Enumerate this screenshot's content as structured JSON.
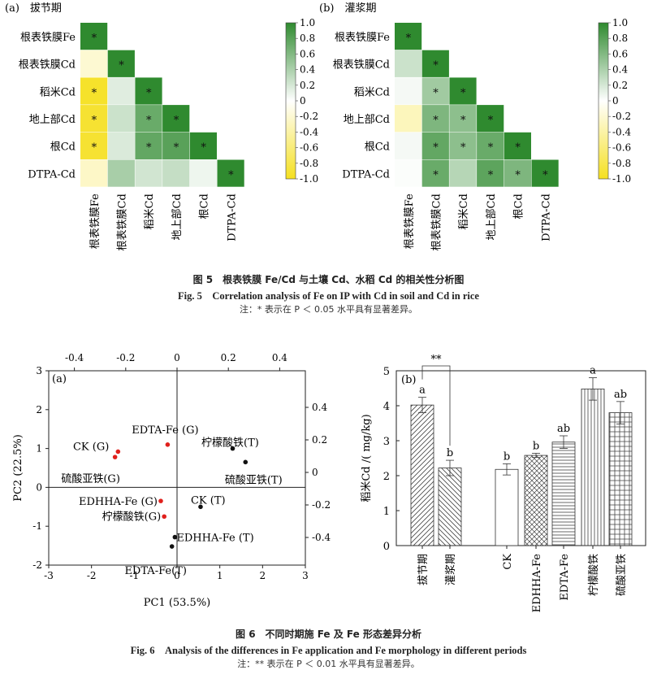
{
  "fig5": {
    "caption_cn": "图 5　根表铁膜 Fe/Cd 与土壤 Cd、水稻 Cd 的相关性分析图",
    "caption_en": "Fig. 5　Correlation analysis of Fe on IP with Cd in soil and Cd in rice",
    "note": "注：* 表示在 P ＜ 0.05 水平具有显著差异。",
    "panel_a_label": "(a)　拔节期",
    "panel_b_label": "(b)　灌浆期"
  },
  "fig6": {
    "caption_cn": "图 6　不同时期施 Fe 及 Fe 形态差异分析",
    "caption_en": "Fig. 6　Analysis of the differences in Fe application and Fe morphology in different periods",
    "note": "注：** 表示在 P ＜ 0.01 水平具有显著差异。",
    "pca_panel_label": "(a)",
    "bar_panel_label": "(b)"
  },
  "colors": {
    "negative": "#f5e020",
    "zero": "#ffffff",
    "positive": "#2f8a2f",
    "pca_g": "#e0201c",
    "pca_t": "#111111"
  },
  "chart_data": [
    {
      "type": "heatmap",
      "id": "fig5a",
      "panel": "(a)　拔节期",
      "row_labels": [
        "根表铁膜Fe",
        "根表铁膜Cd",
        "稻米Cd",
        "地上部Cd",
        "根Cd",
        "DTPA-Cd"
      ],
      "col_labels": [
        "根表铁膜Fe",
        "根表铁膜Cd",
        "稻米Cd",
        "地上部Cd",
        "根Cd",
        "DTPA-Cd"
      ],
      "values": [
        [
          1.0
        ],
        [
          -0.2,
          1.0
        ],
        [
          -0.95,
          0.15,
          1.0
        ],
        [
          -0.92,
          0.25,
          0.72,
          1.0
        ],
        [
          -0.92,
          0.18,
          0.75,
          0.8,
          1.0
        ],
        [
          -0.25,
          0.42,
          0.22,
          0.28,
          0.08,
          1.0
        ]
      ],
      "significant": [
        [
          true
        ],
        [
          false,
          true
        ],
        [
          true,
          false,
          true
        ],
        [
          true,
          false,
          true,
          true
        ],
        [
          true,
          false,
          true,
          true,
          true
        ],
        [
          false,
          false,
          false,
          false,
          false,
          true
        ]
      ],
      "colorbar_ticks": [
        "1.0",
        "0.8",
        "0.6",
        "0.4",
        "0.2",
        "0",
        "-0.2",
        "-0.4",
        "-0.6",
        "-0.8",
        "-1.0"
      ],
      "colorbar_range": [
        -1.0,
        1.0
      ]
    },
    {
      "type": "heatmap",
      "id": "fig5b",
      "panel": "(b)　灌浆期",
      "row_labels": [
        "根表铁膜Fe",
        "根表铁膜Cd",
        "稻米Cd",
        "地上部Cd",
        "根Cd",
        "DTPA-Cd"
      ],
      "col_labels": [
        "根表铁膜Fe",
        "根表铁膜Cd",
        "稻米Cd",
        "地上部Cd",
        "根Cd",
        "DTPA-Cd"
      ],
      "values": [
        [
          1.0
        ],
        [
          0.25,
          1.0
        ],
        [
          0.05,
          0.45,
          1.0
        ],
        [
          -0.3,
          0.62,
          0.55,
          1.0
        ],
        [
          0.05,
          0.75,
          0.55,
          0.72,
          1.0
        ],
        [
          0.02,
          0.72,
          0.35,
          0.78,
          0.62,
          1.0
        ]
      ],
      "significant": [
        [
          true
        ],
        [
          false,
          true
        ],
        [
          false,
          true,
          true
        ],
        [
          false,
          true,
          true,
          true
        ],
        [
          false,
          true,
          true,
          true,
          true
        ],
        [
          false,
          true,
          false,
          true,
          true,
          true
        ]
      ],
      "colorbar_ticks": [
        "1.0",
        "0.8",
        "0.6",
        "0.4",
        "0.2",
        "0",
        "-0.2",
        "-0.4",
        "-0.6",
        "-0.8",
        "-1.0"
      ],
      "colorbar_range": [
        -1.0,
        1.0
      ]
    },
    {
      "type": "scatter",
      "id": "fig6a",
      "xlabel": "PC1 (53.5%)",
      "ylabel": "PC2 (22.5%)",
      "xlim": [
        -3,
        3
      ],
      "ylim": [
        -2,
        3
      ],
      "x_ticks": [
        "-3",
        "-2",
        "-1",
        "0",
        "1",
        "2",
        "3"
      ],
      "y_ticks": [
        "-2",
        "-1",
        "0",
        "1",
        "2",
        "3"
      ],
      "top_axis_range": [
        -0.5,
        0.5
      ],
      "top_ticks": [
        "-0.4",
        "-0.2",
        "0",
        "0.2",
        "0.4"
      ],
      "right_axis_range": [
        -0.57,
        0.625
      ],
      "right_ticks": [
        "0.4",
        "0.2",
        "0",
        "-0.2",
        "-0.4"
      ],
      "points": [
        {
          "label": "CK (G)",
          "x": -1.38,
          "y": 0.92,
          "group": "G"
        },
        {
          "label": "硫酸亚铁(G)",
          "x": -1.45,
          "y": 0.78,
          "group": "G"
        },
        {
          "label": "EDTA-Fe (G)",
          "x": -0.22,
          "y": 1.1,
          "group": "G"
        },
        {
          "label": "EDHHA-Fe (G)",
          "x": -0.38,
          "y": -0.35,
          "group": "G"
        },
        {
          "label": "柠檬酸铁(G)",
          "x": -0.3,
          "y": -0.75,
          "group": "G"
        },
        {
          "label": "柠檬酸铁(T)",
          "x": 1.3,
          "y": 1.0,
          "group": "T"
        },
        {
          "label": "硫酸亚铁(T)",
          "x": 1.6,
          "y": 0.65,
          "group": "T"
        },
        {
          "label": "CK (T)",
          "x": 0.55,
          "y": -0.5,
          "group": "T"
        },
        {
          "label": "EDHHA-Fe (T)",
          "x": -0.05,
          "y": -1.28,
          "group": "T"
        },
        {
          "label": "EDTA-Fe(T)",
          "x": -0.12,
          "y": -1.52,
          "group": "T"
        }
      ]
    },
    {
      "type": "bar",
      "id": "fig6b",
      "ylabel": "稻米Cd /( mg/kg)",
      "ylim": [
        0,
        5
      ],
      "y_ticks": [
        "0",
        "1",
        "2",
        "3",
        "4",
        "5"
      ],
      "categories": [
        "拔节期",
        "灌浆期",
        "CK",
        "EDHHA-Fe",
        "EDTA-Fe",
        "柠檬酸铁",
        "硫酸亚铁"
      ],
      "values": [
        4.02,
        2.22,
        2.18,
        2.58,
        2.96,
        4.48,
        3.8
      ],
      "errors": [
        0.22,
        0.22,
        0.16,
        0.06,
        0.18,
        0.32,
        0.32
      ],
      "letters": [
        "a",
        "b",
        "b",
        "b",
        "ab",
        "a",
        "ab"
      ],
      "patterns": [
        "diag-up",
        "diag-down",
        "none",
        "cross",
        "horiz",
        "vert",
        "grid"
      ],
      "significance": {
        "between": [
          "拔节期",
          "灌浆期"
        ],
        "mark": "**"
      }
    }
  ]
}
